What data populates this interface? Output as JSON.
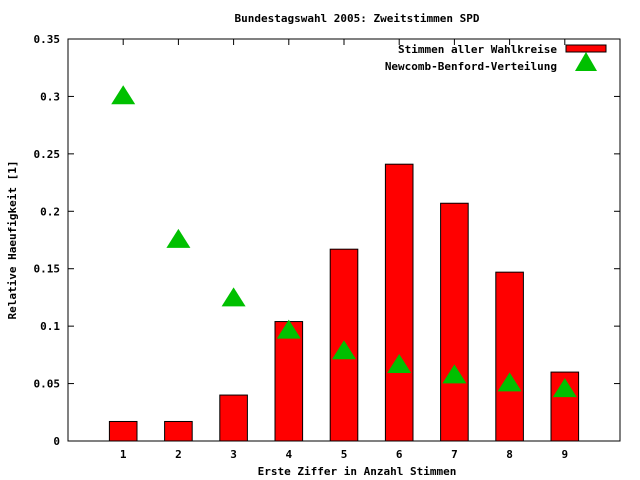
{
  "chart_data": {
    "type": "bar",
    "title": "Bundestagswahl 2005: Zweitstimmen SPD",
    "xlabel": "Erste Ziffer in Anzahl Stimmen",
    "ylabel": "Relative Haeufigkeit [1]",
    "categories": [
      "1",
      "2",
      "3",
      "4",
      "5",
      "6",
      "7",
      "8",
      "9"
    ],
    "xlim": [
      0,
      10
    ],
    "ylim": [
      0,
      0.35
    ],
    "yticks": [
      "0",
      "0.05",
      "0.1",
      "0.15",
      "0.2",
      "0.25",
      "0.3",
      "0.35"
    ],
    "ytick_values": [
      0,
      0.05,
      0.1,
      0.15,
      0.2,
      0.25,
      0.3,
      0.35
    ],
    "legend_position": "top-right",
    "grid": false,
    "series": [
      {
        "name": "Stimmen aller Wahlkreise",
        "kind": "bar",
        "color": "#ff0000",
        "values": [
          0.017,
          0.017,
          0.04,
          0.104,
          0.167,
          0.241,
          0.207,
          0.147,
          0.06
        ]
      },
      {
        "name": "Newcomb-Benford-Verteilung",
        "kind": "scatter",
        "marker": "triangle",
        "color": "#00c000",
        "values": [
          0.301,
          0.176,
          0.125,
          0.097,
          0.079,
          0.067,
          0.058,
          0.051,
          0.046
        ]
      }
    ]
  }
}
